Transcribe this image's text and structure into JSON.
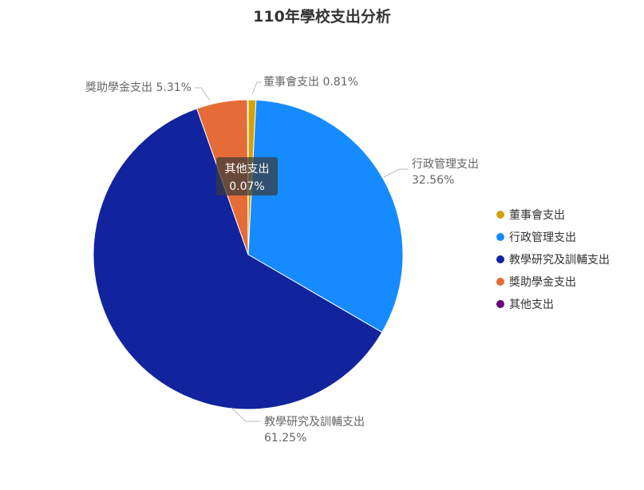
{
  "chart_data": {
    "type": "pie",
    "title": "110年學校支出分析",
    "series": [
      {
        "name": "董事會支出",
        "value": 0.81,
        "label": "0.81%",
        "color": "#D4A106"
      },
      {
        "name": "行政管理支出",
        "value": 32.56,
        "label": "32.56%",
        "color": "#168BFF"
      },
      {
        "name": "教學研究及訓輔支出",
        "value": 61.25,
        "label": "61.25%",
        "color": "#12239E"
      },
      {
        "name": "獎助學金支出",
        "value": 5.31,
        "label": "5.31%",
        "color": "#E66C37"
      },
      {
        "name": "其他支出",
        "value": 0.07,
        "label": "0.07%",
        "color": "#6B007B"
      }
    ],
    "legend_position": "right",
    "tooltip": {
      "name": "其他支出",
      "value": "0.07%"
    }
  }
}
